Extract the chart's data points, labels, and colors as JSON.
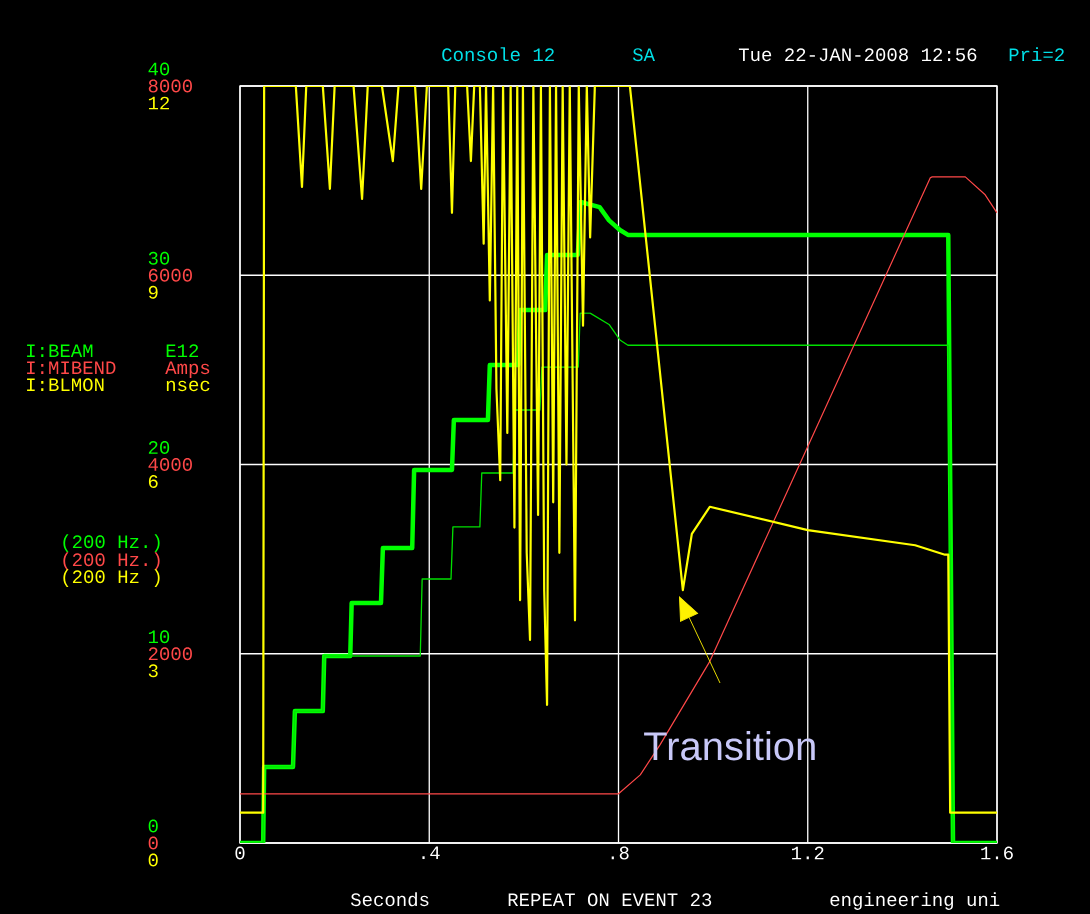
{
  "chart_data": {
    "type": "line",
    "xlabel": "Seconds",
    "xlim": [
      0,
      1.6
    ],
    "xticks": [
      0,
      {
        "value": 0.4,
        "label": ".4"
      },
      {
        "value": 0.8,
        "label": ".8"
      },
      1.2,
      1.6
    ],
    "ylim": [
      0,
      40
    ],
    "yticks": [
      0,
      10,
      20,
      30,
      40
    ],
    "y2lim": [
      0,
      8000
    ],
    "y2ticks": [
      0,
      2000,
      4000,
      6000,
      8000
    ],
    "y3lim": [
      0,
      12
    ],
    "y3ticks": [
      0,
      3,
      6,
      9,
      12
    ],
    "grid": true,
    "legend": "left",
    "series": [
      {
        "name": "I:BEAM",
        "color": "#00ff00",
        "axis": "y",
        "x": [
          0,
          0.049,
          0.051,
          0.112,
          0.116,
          0.175,
          0.178,
          0.233,
          0.236,
          0.298,
          0.302,
          0.364,
          0.368,
          0.448,
          0.452,
          0.524,
          0.528,
          0.588,
          0.592,
          0.645,
          0.649,
          0.714,
          0.72,
          0.76,
          0.78,
          0.803,
          0.82,
          1.497,
          1.507,
          1.6
        ],
        "values": [
          0,
          0,
          4.02,
          4.02,
          6.97,
          6.97,
          9.88,
          9.88,
          12.68,
          12.68,
          15.59,
          15.59,
          19.71,
          19.71,
          22.35,
          22.35,
          25.26,
          25.26,
          28.16,
          28.16,
          31.07,
          31.07,
          33.87,
          33.6,
          32.9,
          32.39,
          32.13,
          32.13,
          0,
          0
        ]
      },
      {
        "color": "#00e000",
        "axis": "y",
        "x": [
          0,
          0.049,
          0.051,
          0.112,
          0.116,
          0.175,
          0.178,
          0.381,
          0.385,
          0.446,
          0.45,
          0.507,
          0.511,
          0.577,
          0.581,
          0.634,
          0.638,
          0.715,
          0.719,
          0.74,
          0.78,
          0.803,
          0.82,
          1.497,
          1.507,
          1.6
        ],
        "values": [
          0,
          0,
          4.02,
          4.02,
          6.97,
          6.97,
          9.88,
          9.88,
          13.95,
          13.95,
          16.7,
          16.7,
          19.55,
          19.55,
          22.88,
          22.88,
          25.15,
          25.15,
          28.0,
          28.0,
          27.4,
          26.58,
          26.3,
          26.3,
          0,
          0
        ]
      },
      {
        "name": "I:MIBEND",
        "color": "#ff4848",
        "axis": "y2",
        "x": [
          0,
          0.8,
          0.846,
          0.888,
          0.993,
          1.459,
          1.463,
          1.533,
          1.575,
          1.6
        ],
        "values": [
          520,
          520,
          720,
          1040,
          1920,
          7030,
          7040,
          7040,
          6850,
          6660
        ]
      },
      {
        "name": "I:BLMON",
        "color": "#ffff00",
        "axis": "y3",
        "x": [
          0,
          0.049,
          0.051,
          0.118,
          0.131,
          0.14,
          0.175,
          0.19,
          0.2,
          0.24,
          0.258,
          0.27,
          0.3,
          0.323,
          0.335,
          0.37,
          0.383,
          0.395,
          0.44,
          0.448,
          0.455,
          0.48,
          0.488,
          0.495,
          0.507,
          0.515,
          0.52,
          0.528,
          0.535,
          0.542,
          0.55,
          0.556,
          0.565,
          0.572,
          0.58,
          0.586,
          0.592,
          0.598,
          0.606,
          0.613,
          0.62,
          0.63,
          0.636,
          0.643,
          0.649,
          0.655,
          0.662,
          0.668,
          0.675,
          0.682,
          0.69,
          0.697,
          0.708,
          0.716,
          0.725,
          0.733,
          0.74,
          0.75,
          0.824,
          0.936,
          0.955,
          0.993,
          1.2,
          1.427,
          1.49,
          1.497,
          1.501,
          1.6
        ],
        "values": [
          0.48,
          0.48,
          12,
          12,
          10.4,
          12,
          12,
          10.37,
          12,
          12,
          10.21,
          12,
          12,
          10.81,
          12,
          12,
          10.37,
          12,
          12,
          9.99,
          12,
          12,
          10.81,
          12,
          12,
          9.5,
          12,
          8.6,
          12,
          7.2,
          5.75,
          12,
          6.5,
          12,
          5.0,
          12,
          3.85,
          12,
          4.6,
          3.22,
          12,
          5.2,
          12,
          4.0,
          2.19,
          12,
          5.4,
          12,
          4.6,
          12,
          6.0,
          12,
          3.53,
          12,
          8.2,
          12,
          9.6,
          12,
          12,
          4.01,
          4.9,
          5.33,
          4.96,
          4.72,
          4.57,
          4.57,
          0.48,
          0.48
        ]
      }
    ],
    "annotations": [
      "Console 12",
      "SA",
      "Tue 22-JAN-2008 12:56",
      "Pri=2",
      "E12",
      "Amps",
      "nsec",
      "(200 Hz.)",
      "(200 Hz.)",
      "(200 Hz )",
      "REPEAT ON EVENT 23",
      "engineering uni",
      "Transition"
    ]
  }
}
